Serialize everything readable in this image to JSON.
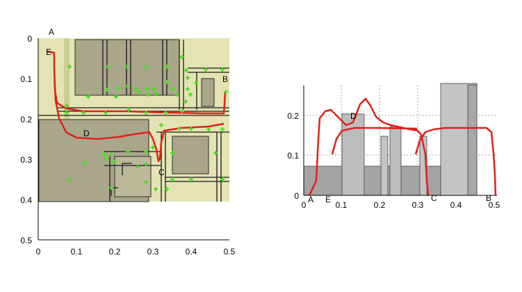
{
  "left_panel": {
    "x_ticks": [
      "0",
      "0.1",
      "0.2",
      "0.3",
      "0.4",
      "0.5"
    ],
    "y_ticks": [
      "0",
      "0.1",
      "0.2",
      "0.3",
      "0.4",
      "0.5"
    ],
    "point_labels": [
      "A",
      "E",
      "B",
      "D",
      "C"
    ],
    "colors": {
      "map_bg": "#e4e3b3",
      "block": "#a9a68a",
      "path": "#e0201a",
      "marker": "#46e01e"
    }
  },
  "right_panel": {
    "x_ticks": [
      "0",
      "0.1",
      "0.2",
      "0.3",
      "0.4",
      "0.5"
    ],
    "y_ticks": [
      "0",
      "0.1",
      "0.2"
    ],
    "point_labels": [
      "A",
      "E",
      "D",
      "C",
      "B"
    ],
    "colors": {
      "bar": "#bdbdbd",
      "path": "#e0201a"
    }
  }
}
